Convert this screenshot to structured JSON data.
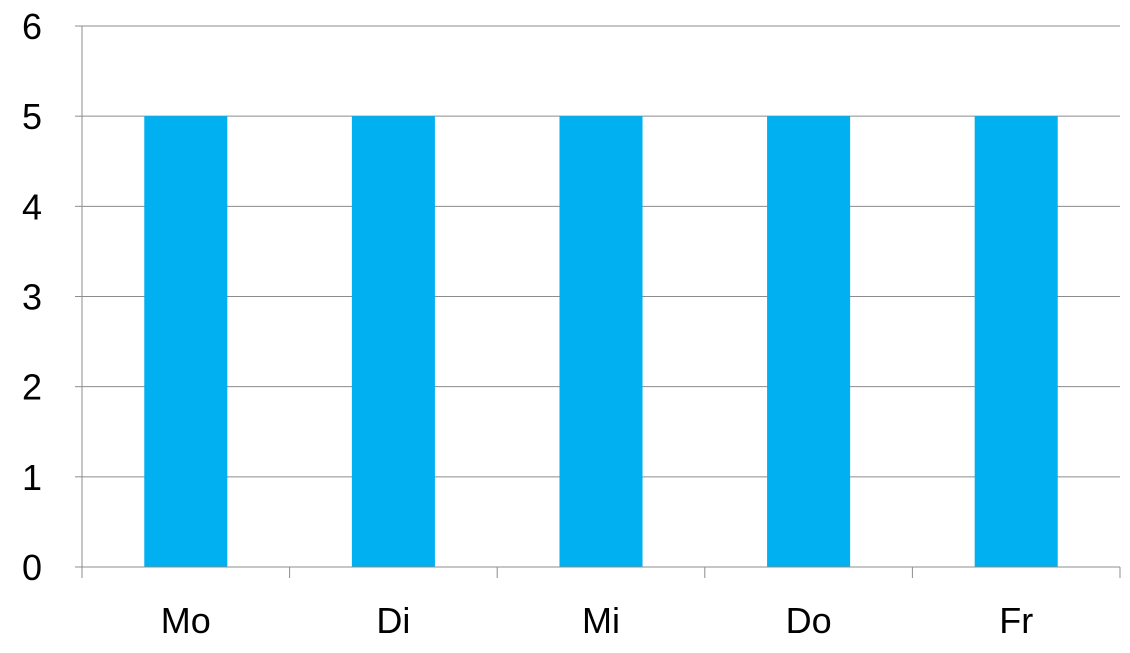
{
  "chart_data": {
    "type": "bar",
    "title": "",
    "xlabel": "",
    "ylabel": "",
    "categories": [
      "Mo",
      "Di",
      "Mi",
      "Do",
      "Fr"
    ],
    "values": [
      5,
      5,
      5,
      5,
      5
    ],
    "ylim": [
      0,
      6
    ],
    "yticks": [
      "0",
      "1",
      "2",
      "3",
      "4",
      "5",
      "6"
    ],
    "grid": true,
    "legend": "none",
    "colors": {
      "bar": "#00B0F0",
      "grid": "#8C8C8C",
      "axis": "#8C8C8C"
    }
  }
}
